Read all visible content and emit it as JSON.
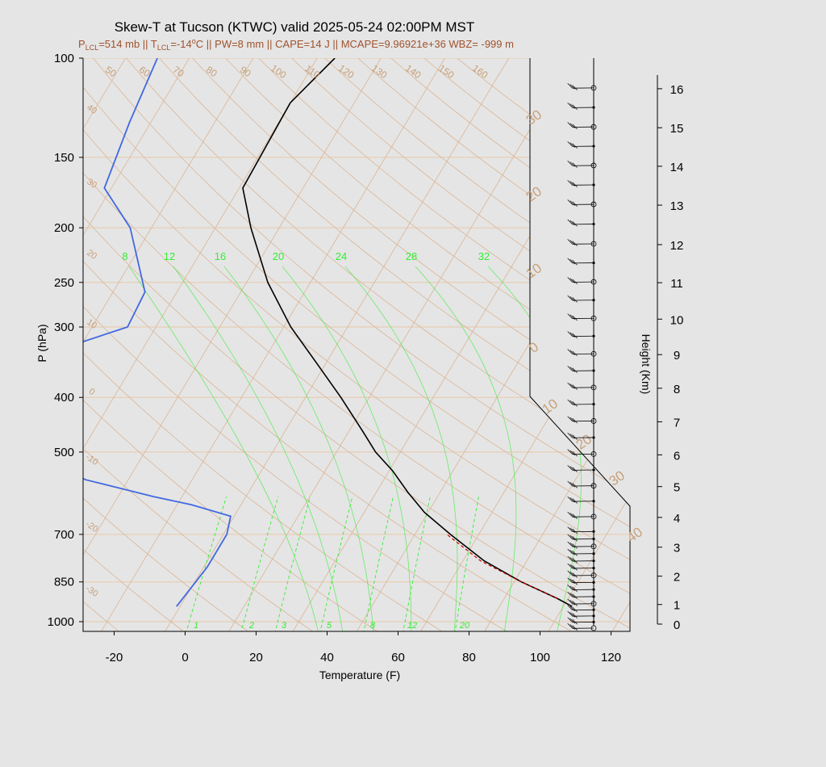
{
  "title": "Skew-T at Tucson (KTWC) valid 2025-05-24 02:00PM MST",
  "subtitle": {
    "lcl_p": "P",
    "lcl_p_sub": "LCL",
    "lcl_p_val": "=514 mb || T",
    "lcl_t_sub": "LCL",
    "lcl_t_val": "=-14",
    "lcl_t_deg": "o",
    "rest": "C || PW=8 mm || CAPE=14 J || MCAPE=9.96921e+36 WBZ= -999 m"
  },
  "colors": {
    "background": "#e5e5e5",
    "temperature": "#000000",
    "dewpoint": "#4169e1",
    "parcel": "#cc0000",
    "isobars": "#e8c9a8",
    "isotherms": "#dbb596",
    "adiabats": "#dbb596",
    "mixing_ratio": "#33ee33",
    "subtitle": "#a0522d"
  },
  "chart_data": {
    "type": "skew-t",
    "xlabel": "Temperature (F)",
    "ylabel": "P (hPa)",
    "y2label": "Height (Km)",
    "xlim": [
      -28,
      125
    ],
    "ylim": [
      1050,
      100
    ],
    "y_log": true,
    "x_ticks": [
      -20,
      0,
      20,
      40,
      60,
      80,
      100,
      120
    ],
    "pressure_ticks": [
      100,
      150,
      200,
      250,
      300,
      400,
      500,
      700,
      850,
      1000
    ],
    "height_ticks": [
      0,
      1,
      2,
      3,
      4,
      5,
      6,
      7,
      8,
      9,
      10,
      11,
      12,
      13,
      14,
      15,
      16
    ],
    "height_levels_hpa": [
      1000,
      905,
      806,
      716,
      634,
      559,
      491,
      429,
      374,
      326,
      282,
      243,
      208,
      177,
      151,
      129,
      110
    ],
    "temperature_profile": {
      "pressure": [
        940,
        910,
        850,
        780,
        700,
        640,
        590,
        540,
        500,
        460,
        400,
        350,
        300,
        250,
        200,
        170,
        120,
        100
      ],
      "temp_f": [
        106.5,
        101,
        88,
        74,
        60,
        49,
        41,
        33,
        25,
        18,
        6,
        -6,
        -20,
        -34,
        -48,
        -57,
        -58,
        -53
      ]
    },
    "dewpoint_profile": {
      "pressure": [
        940,
        800,
        700,
        650,
        620,
        600,
        560,
        520,
        460,
        410,
        360,
        330,
        300,
        260,
        200,
        170,
        130,
        100
      ],
      "dewpoint_f": [
        -5,
        -3,
        -3,
        -5,
        -18,
        -30,
        -52,
        -66,
        -80,
        -86,
        -87,
        -82,
        -66,
        -67,
        -82,
        -96,
        -100,
        -103
      ]
    },
    "parcel_profile": {
      "pressure": [
        910,
        850,
        780,
        700
      ],
      "temp_f": [
        101,
        88,
        73,
        59
      ]
    },
    "isotherm_labels": [
      -30,
      -20,
      -10,
      0,
      10,
      20,
      30,
      40
    ],
    "isotherm_labels_upper": [
      0,
      10,
      20,
      30
    ],
    "dry_adiabat_labels": [
      50,
      60,
      70,
      80,
      90,
      100,
      110,
      120,
      130,
      140,
      150,
      160
    ],
    "dry_adiabat_left_labels": [
      40,
      30,
      20,
      10,
      0,
      -10,
      -20,
      -30
    ],
    "mixing_ratio_top": [
      8,
      12,
      16,
      20,
      24,
      28,
      32
    ],
    "mixing_ratio_bottom": [
      1,
      2,
      3,
      5,
      8,
      12,
      20
    ],
    "wind_levels_km": [
      0,
      0.25,
      0.5,
      0.75,
      1,
      1.25,
      1.5,
      1.75,
      2,
      2.25,
      2.5,
      2.75,
      3,
      3.25,
      3.5,
      4,
      4.5,
      5,
      5.5,
      6,
      6.5,
      7,
      7.5,
      8,
      8.5,
      9,
      9.5,
      10,
      10.5,
      11,
      11.5,
      12,
      12.5,
      13,
      13.5,
      14,
      14.5,
      15,
      15.5,
      16
    ],
    "grid": true
  }
}
